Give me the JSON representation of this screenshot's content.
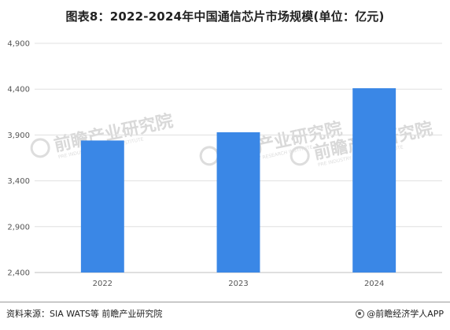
{
  "title": "图表8：2022-2024年中国通信芯片市场规模(单位：亿元)",
  "watermark": {
    "text": "前瞻产业研究院",
    "subtext": "PRE INDUSTRY RESEARCH INSTITUTE"
  },
  "chart_data": {
    "type": "bar",
    "title": "图表8：2022-2024年中国通信芯片市场规模(单位：亿元)",
    "categories": [
      "2022",
      "2023",
      "2024"
    ],
    "values": [
      3840,
      3930,
      4410
    ],
    "ylim": [
      2400,
      4900
    ],
    "yticks": [
      2400,
      2900,
      3400,
      3900,
      4400,
      4900
    ],
    "ytick_labels": [
      "2,400",
      "2,900",
      "3,400",
      "3,900",
      "4,400",
      "4,900"
    ],
    "xlabel": "",
    "ylabel": "",
    "bar_color": "#3a87e6",
    "grid": true,
    "legend": "none"
  },
  "footer": {
    "source": "资料来源：SIA WATS等 前瞻产业研究院",
    "brand": "@前瞻经济学人APP"
  }
}
